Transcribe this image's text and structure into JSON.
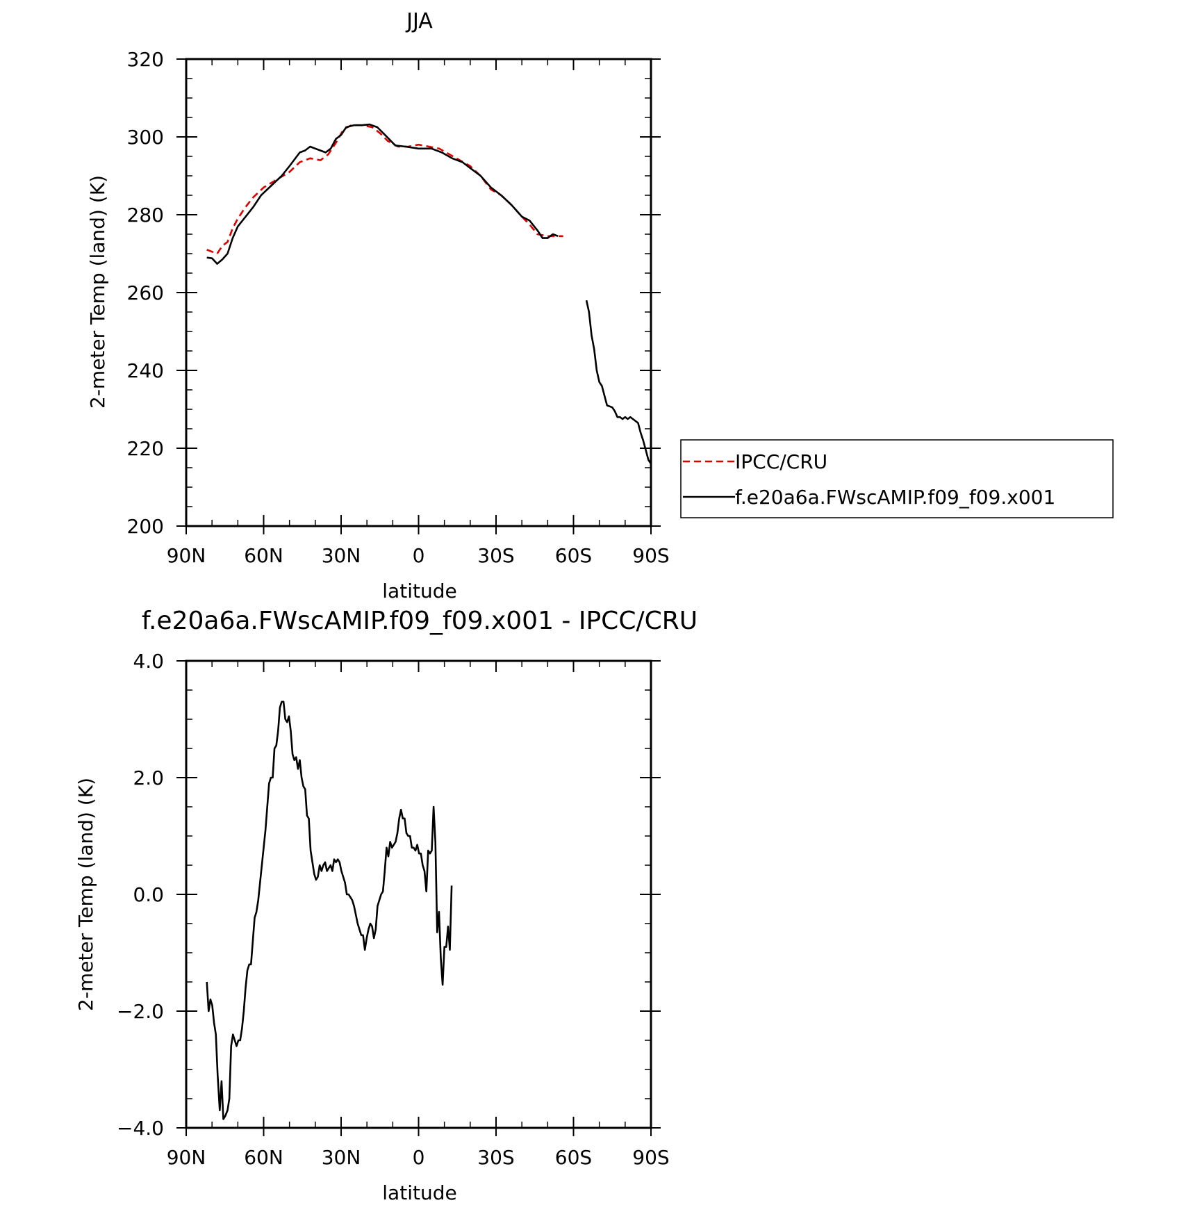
{
  "chart_data": [
    {
      "type": "line",
      "title": "JJA",
      "xlabel": "latitude",
      "ylabel": "2-meter Temp (land) (K)",
      "xlim": [
        90,
        -90
      ],
      "ylim": [
        200,
        320
      ],
      "x_ticks": [
        90,
        60,
        30,
        0,
        -30,
        -60,
        -90
      ],
      "x_tick_labels": [
        "90N",
        "60N",
        "30N",
        "0",
        "30S",
        "60S",
        "90S"
      ],
      "y_ticks": [
        200,
        220,
        240,
        260,
        280,
        300,
        320
      ],
      "y_tick_labels": [
        "200",
        "220",
        "240",
        "260",
        "280",
        "300",
        "320"
      ],
      "grid": false,
      "legend": {
        "placement": "right",
        "entries": [
          "IPCC/CRU",
          "f.e20a6a.FWscAMIP.f09_f09.x001"
        ]
      },
      "series": [
        {
          "name": "IPCC/CRU",
          "color": "#e00000",
          "dash": "dashed",
          "points": [
            [
              82,
              271
            ],
            [
              80,
              270.5
            ],
            [
              78,
              270
            ],
            [
              76,
              272
            ],
            [
              74,
              273
            ],
            [
              72,
              276.5
            ],
            [
              70,
              279
            ],
            [
              67,
              282
            ],
            [
              64,
              284.5
            ],
            [
              60,
              287
            ],
            [
              55,
              289
            ],
            [
              50,
              291
            ],
            [
              46,
              293.5
            ],
            [
              42,
              294.5
            ],
            [
              38,
              294
            ],
            [
              35,
              295.5
            ],
            [
              32,
              298.5
            ],
            [
              29,
              302
            ],
            [
              26,
              303
            ],
            [
              22,
              303
            ],
            [
              18,
              302.5
            ],
            [
              15,
              301
            ],
            [
              12,
              299
            ],
            [
              8,
              297.5
            ],
            [
              4,
              297.5
            ],
            [
              0,
              298
            ],
            [
              -4,
              297.5
            ],
            [
              -8,
              297
            ],
            [
              -12,
              295.5
            ],
            [
              -16,
              294
            ],
            [
              -20,
              292.5
            ],
            [
              -24,
              290
            ],
            [
              -28,
              286.5
            ],
            [
              -32,
              285
            ],
            [
              -36,
              282.5
            ],
            [
              -40,
              279.5
            ],
            [
              -43,
              277.5
            ],
            [
              -46,
              275
            ],
            [
              -50,
              274.5
            ],
            [
              -52,
              274.5
            ],
            [
              -54,
              274.5
            ],
            [
              -56,
              274.5
            ]
          ]
        },
        {
          "name": "f.e20a6a.FWscAMIP.f09_f09.x001",
          "color": "#000000",
          "dash": "solid",
          "segments": [
            [
              [
                82,
                269
              ],
              [
                80,
                268.8
              ],
              [
                78,
                267.4
              ],
              [
                76,
                268.5
              ],
              [
                74,
                270
              ],
              [
                72,
                274
              ],
              [
                70,
                277
              ],
              [
                67,
                279.5
              ],
              [
                64,
                282
              ],
              [
                61,
                285
              ],
              [
                57,
                287.5
              ],
              [
                53,
                290
              ],
              [
                50,
                292.5
              ],
              [
                46,
                296
              ],
              [
                44,
                296.5
              ],
              [
                42,
                297.5
              ],
              [
                40,
                297
              ],
              [
                38,
                296.5
              ],
              [
                36,
                296
              ],
              [
                34,
                297
              ],
              [
                32,
                299.5
              ],
              [
                30,
                300.5
              ],
              [
                28,
                302.5
              ],
              [
                25,
                303
              ],
              [
                22,
                303
              ],
              [
                19,
                303.2
              ],
              [
                16,
                302.5
              ],
              [
                13,
                300.5
              ],
              [
                9,
                297.8
              ],
              [
                5,
                297.5
              ],
              [
                0,
                297
              ],
              [
                -5,
                297
              ],
              [
                -9,
                296
              ],
              [
                -13,
                294.5
              ],
              [
                -17,
                293.5
              ],
              [
                -20,
                292
              ],
              [
                -24,
                290
              ],
              [
                -28,
                287
              ],
              [
                -32,
                285
              ],
              [
                -36,
                282.5
              ],
              [
                -40,
                279.5
              ],
              [
                -43,
                278.5
              ],
              [
                -46,
                276
              ],
              [
                -48,
                274
              ],
              [
                -50,
                274
              ],
              [
                -52,
                275
              ],
              [
                -54,
                274.5
              ]
            ],
            [
              [
                -65,
                258
              ],
              [
                -66,
                255
              ],
              [
                -67,
                249
              ],
              [
                -68,
                245.5
              ],
              [
                -69,
                240
              ],
              [
                -70,
                237
              ],
              [
                -71,
                236
              ],
              [
                -72,
                233.5
              ],
              [
                -73,
                231
              ],
              [
                -75,
                230.5
              ],
              [
                -76,
                229.5
              ],
              [
                -77,
                228
              ],
              [
                -78,
                228
              ],
              [
                -79,
                227.5
              ],
              [
                -80,
                228
              ],
              [
                -81,
                227.5
              ],
              [
                -82,
                228
              ],
              [
                -83,
                227.5
              ],
              [
                -85,
                226.5
              ],
              [
                -86,
                224
              ],
              [
                -87,
                222
              ],
              [
                -88,
                219.5
              ],
              [
                -89,
                217
              ],
              [
                -90,
                216
              ]
            ]
          ]
        }
      ]
    },
    {
      "type": "line",
      "title": "f.e20a6a.FWscAMIP.f09_f09.x001 - IPCC/CRU",
      "xlabel": "latitude",
      "ylabel": "2-meter Temp (land) (K)",
      "xlim": [
        90,
        -90
      ],
      "ylim": [
        -4.0,
        4.0
      ],
      "x_ticks": [
        90,
        60,
        30,
        0,
        -30,
        -60,
        -90
      ],
      "x_tick_labels": [
        "90N",
        "60N",
        "30N",
        "0",
        "30S",
        "60S",
        "90S"
      ],
      "y_ticks": [
        -4.0,
        -2.0,
        0.0,
        2.0,
        4.0
      ],
      "y_tick_labels": [
        "−4.0",
        "−2.0",
        "0.0",
        "2.0",
        "4.0"
      ],
      "grid": false,
      "series": [
        {
          "color": "#000000",
          "dash": "solid",
          "points": [
            [
              82,
              -1.5
            ],
            [
              81.3,
              -2.0
            ],
            [
              80.6,
              -1.8
            ],
            [
              79.9,
              -1.9
            ],
            [
              79.2,
              -2.2
            ],
            [
              78.5,
              -2.4
            ],
            [
              77.8,
              -3.1
            ],
            [
              77,
              -3.7
            ],
            [
              76.3,
              -3.2
            ],
            [
              75.6,
              -3.85
            ],
            [
              74.9,
              -3.8
            ],
            [
              74,
              -3.7
            ],
            [
              73.3,
              -3.5
            ],
            [
              72.6,
              -2.6
            ],
            [
              71.9,
              -2.4
            ],
            [
              71.2,
              -2.5
            ],
            [
              70.5,
              -2.6
            ],
            [
              69.8,
              -2.5
            ],
            [
              69.1,
              -2.5
            ],
            [
              68.4,
              -2.3
            ],
            [
              67.7,
              -2.0
            ],
            [
              67,
              -1.6
            ],
            [
              66.3,
              -1.3
            ],
            [
              65.6,
              -1.2
            ],
            [
              64.9,
              -1.2
            ],
            [
              64.2,
              -0.8
            ],
            [
              63.5,
              -0.4
            ],
            [
              62.8,
              -0.3
            ],
            [
              62.1,
              -0.1
            ],
            [
              61.4,
              0.2
            ],
            [
              60.7,
              0.5
            ],
            [
              60,
              0.8
            ],
            [
              59.3,
              1.1
            ],
            [
              58.6,
              1.5
            ],
            [
              57.9,
              1.9
            ],
            [
              57.2,
              2.0
            ],
            [
              56.5,
              2.0
            ],
            [
              55.8,
              2.5
            ],
            [
              55.1,
              2.55
            ],
            [
              54.4,
              2.8
            ],
            [
              53.7,
              3.2
            ],
            [
              53,
              3.3
            ],
            [
              52.3,
              3.3
            ],
            [
              51.6,
              3.0
            ],
            [
              50.9,
              2.95
            ],
            [
              50.2,
              3.05
            ],
            [
              49.5,
              2.8
            ],
            [
              48.8,
              2.4
            ],
            [
              48.1,
              2.3
            ],
            [
              47.4,
              2.35
            ],
            [
              46.7,
              2.15
            ],
            [
              46,
              2.3
            ],
            [
              45.3,
              2.0
            ],
            [
              44.6,
              1.85
            ],
            [
              43.9,
              1.8
            ],
            [
              43.2,
              1.35
            ],
            [
              42.5,
              1.3
            ],
            [
              41.8,
              0.75
            ],
            [
              41.1,
              0.55
            ],
            [
              40.4,
              0.35
            ],
            [
              39.7,
              0.25
            ],
            [
              39,
              0.3
            ],
            [
              38.3,
              0.5
            ],
            [
              37.6,
              0.4
            ],
            [
              36.9,
              0.5
            ],
            [
              36.2,
              0.55
            ],
            [
              35.5,
              0.4
            ],
            [
              34.8,
              0.45
            ],
            [
              34.1,
              0.5
            ],
            [
              33.4,
              0.4
            ],
            [
              32.7,
              0.6
            ],
            [
              32,
              0.55
            ],
            [
              31.3,
              0.6
            ],
            [
              30.6,
              0.55
            ],
            [
              29.9,
              0.4
            ],
            [
              29.2,
              0.3
            ],
            [
              28.5,
              0.2
            ],
            [
              27.8,
              0.0
            ],
            [
              27.1,
              0.0
            ],
            [
              26.4,
              -0.05
            ],
            [
              25.7,
              -0.1
            ],
            [
              25,
              -0.2
            ],
            [
              24.3,
              -0.35
            ],
            [
              23.6,
              -0.5
            ],
            [
              22.9,
              -0.6
            ],
            [
              22.2,
              -0.7
            ],
            [
              21.5,
              -0.7
            ],
            [
              20.8,
              -0.95
            ],
            [
              20.1,
              -0.75
            ],
            [
              19.4,
              -0.6
            ],
            [
              18.7,
              -0.5
            ],
            [
              18,
              -0.55
            ],
            [
              17.3,
              -0.75
            ],
            [
              16.6,
              -0.6
            ],
            [
              15.9,
              -0.2
            ],
            [
              15.2,
              -0.1
            ],
            [
              14.5,
              0.0
            ],
            [
              13.8,
              0.05
            ],
            [
              13.1,
              0.4
            ],
            [
              12.4,
              0.8
            ],
            [
              11.7,
              0.65
            ],
            [
              11,
              0.9
            ],
            [
              10.3,
              0.8
            ],
            [
              9.6,
              0.85
            ],
            [
              8.9,
              0.9
            ],
            [
              8.2,
              1.05
            ],
            [
              7.5,
              1.3
            ],
            [
              6.8,
              1.45
            ],
            [
              6.1,
              1.3
            ],
            [
              5.4,
              1.3
            ],
            [
              4.7,
              1.05
            ],
            [
              4,
              1.0
            ],
            [
              3.3,
              1.0
            ],
            [
              2.6,
              0.8
            ],
            [
              1.9,
              0.8
            ],
            [
              1.2,
              0.75
            ],
            [
              0.5,
              0.85
            ],
            [
              -0.2,
              0.7
            ],
            [
              -0.9,
              0.7
            ],
            [
              -1.6,
              0.5
            ],
            [
              -2.3,
              0.4
            ],
            [
              -3,
              0.05
            ],
            [
              -3.7,
              0.75
            ],
            [
              -4.4,
              0.7
            ],
            [
              -5.1,
              0.75
            ],
            [
              -5.8,
              1.5
            ],
            [
              -6.5,
              0.9
            ],
            [
              -7.2,
              -0.65
            ],
            [
              -7.9,
              -0.3
            ],
            [
              -8.6,
              -1.1
            ],
            [
              -9.3,
              -1.55
            ],
            [
              -10,
              -0.9
            ],
            [
              -10.7,
              -0.9
            ],
            [
              -11.4,
              -0.55
            ],
            [
              -12.1,
              -0.95
            ],
            [
              -12.8,
              0.15
            ]
          ]
        }
      ]
    }
  ]
}
